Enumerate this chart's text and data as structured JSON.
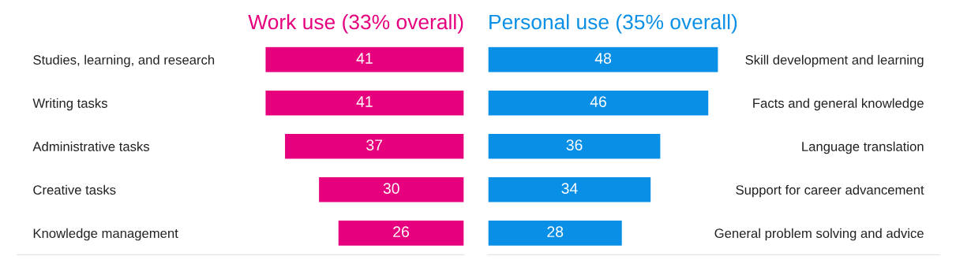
{
  "chart_data": [
    {
      "type": "bar",
      "orientation": "horizontal",
      "title": "Work use (33% overall)",
      "categories": [
        "Studies, learning, and research",
        "Writing tasks",
        "Administrative tasks",
        "Creative tasks",
        "Knowledge management"
      ],
      "series": [
        {
          "color": "#e6007e",
          "values": [
            41,
            41,
            37,
            30,
            26
          ]
        }
      ],
      "xlim": [
        92,
        0
      ],
      "data_labels": true,
      "tick_labels": "y",
      "grid": false,
      "legend": false
    },
    {
      "type": "bar",
      "orientation": "horizontal",
      "title": "Personal use (35% overall)",
      "categories": [
        "Skill development and learning",
        "Facts and general knowledge",
        "Language translation",
        "Support for career advancement",
        "General problem solving and advice"
      ],
      "series": [
        {
          "color": "#0a8fe6",
          "values": [
            48,
            46,
            36,
            34,
            28
          ]
        }
      ],
      "xlim": [
        0,
        94
      ],
      "data_labels": true,
      "tick_labels": "y",
      "grid": false,
      "legend": false
    }
  ]
}
